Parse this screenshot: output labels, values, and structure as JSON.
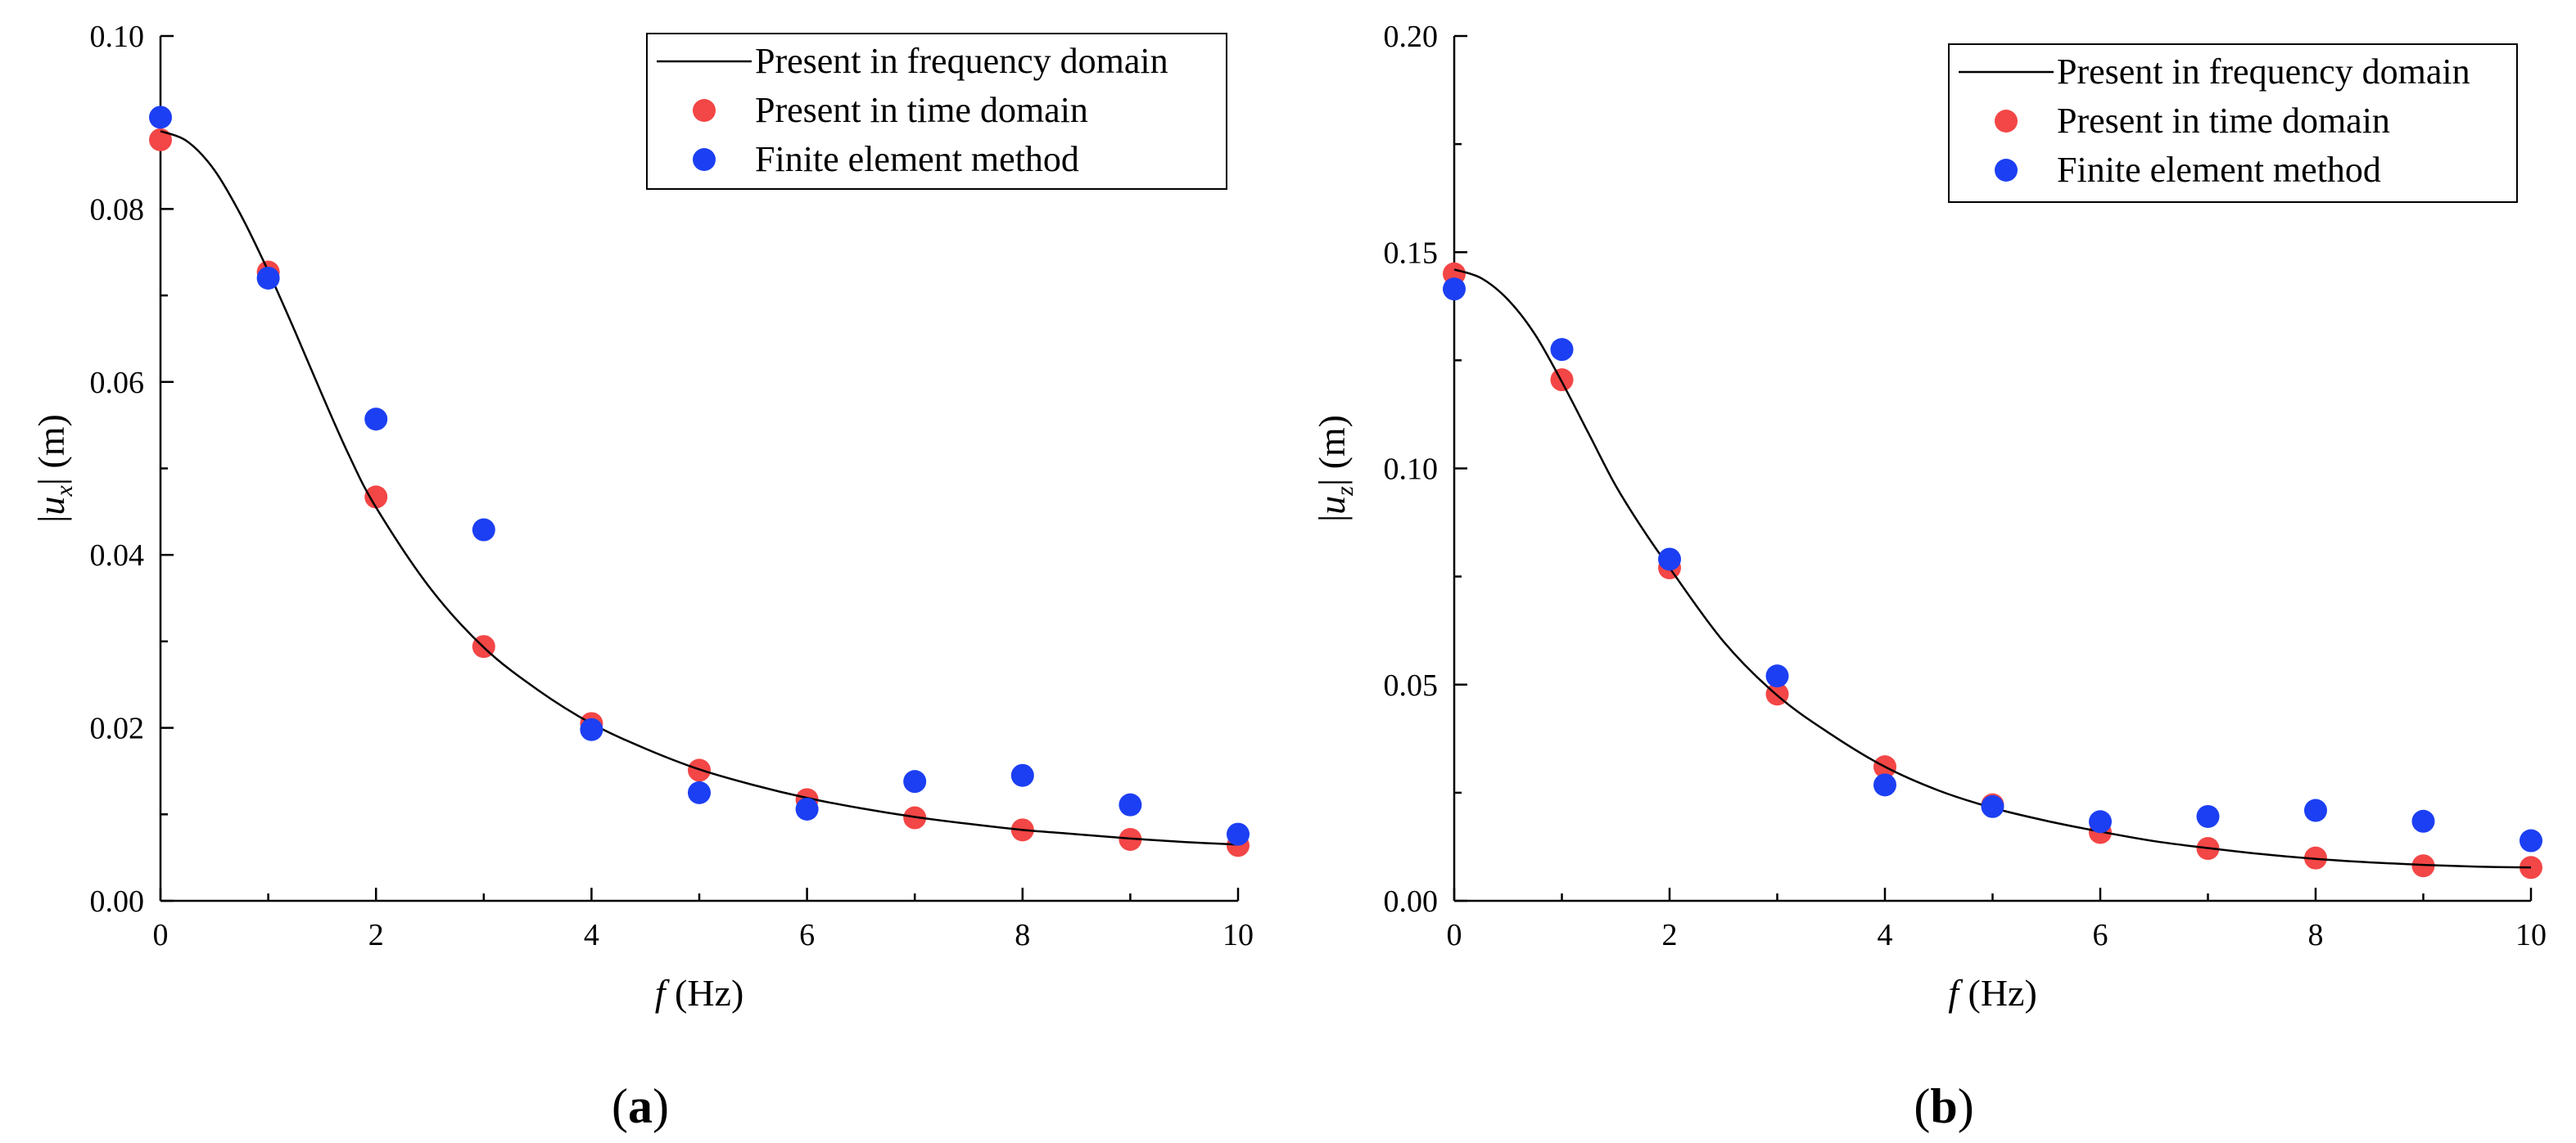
{
  "colors": {
    "time_domain": "#f34646",
    "fem": "#1c3ff3",
    "curve": "#000000"
  },
  "chart_data": [
    {
      "type": "line+scatter",
      "panel_label": "a",
      "xlabel_italic": "f",
      "xlabel_rest": "(Hz)",
      "ylabel_prefix": "|",
      "ylabel_var": "u",
      "ylabel_sub": "x",
      "ylabel_suffix": "| (m)",
      "xlim": [
        0,
        10
      ],
      "ylim": [
        0,
        0.1
      ],
      "x_ticks": [
        0,
        2,
        4,
        6,
        8,
        10
      ],
      "x_tick_labels": [
        "0",
        "2",
        "4",
        "6",
        "8",
        "10"
      ],
      "y_ticks": [
        0,
        0.02,
        0.04,
        0.06,
        0.08,
        0.1
      ],
      "y_tick_labels": [
        "0.00",
        "0.02",
        "0.04",
        "0.06",
        "0.08",
        "0.10"
      ],
      "legend_position": "top-right",
      "series": [
        {
          "name": "Present in frequency domain",
          "kind": "line",
          "x": [
            0,
            0.25,
            0.5,
            0.75,
            1,
            1.25,
            1.5,
            1.75,
            2,
            2.5,
            3,
            3.5,
            4,
            4.5,
            5,
            5.5,
            6,
            6.5,
            7,
            7.5,
            8,
            8.5,
            9,
            9.5,
            10
          ],
          "y": [
            0.089,
            0.0878,
            0.0845,
            0.0792,
            0.0728,
            0.0658,
            0.0585,
            0.0515,
            0.0455,
            0.0362,
            0.0293,
            0.0244,
            0.0205,
            0.0176,
            0.0152,
            0.0134,
            0.0119,
            0.0107,
            0.0097,
            0.0089,
            0.0082,
            0.0077,
            0.0072,
            0.0068,
            0.0065
          ]
        },
        {
          "name": "Present in time domain",
          "kind": "scatter",
          "x": [
            0,
            1,
            2,
            3,
            4,
            5,
            6,
            7,
            8,
            9,
            10
          ],
          "y": [
            0.088,
            0.0727,
            0.0467,
            0.0294,
            0.0205,
            0.0151,
            0.0117,
            0.0096,
            0.0082,
            0.0071,
            0.0064
          ]
        },
        {
          "name": "Finite element method",
          "kind": "scatter",
          "x": [
            0,
            1,
            2,
            3,
            4,
            5,
            6,
            7,
            8,
            9,
            10
          ],
          "y": [
            0.0906,
            0.072,
            0.0557,
            0.0429,
            0.0198,
            0.0125,
            0.0106,
            0.0138,
            0.0145,
            0.0111,
            0.0077
          ]
        }
      ]
    },
    {
      "type": "line+scatter",
      "panel_label": "b",
      "xlabel_italic": "f",
      "xlabel_rest": "(Hz)",
      "ylabel_prefix": "|",
      "ylabel_var": "u",
      "ylabel_sub": "z",
      "ylabel_suffix": "| (m)",
      "xlim": [
        0,
        10
      ],
      "ylim": [
        0,
        0.2
      ],
      "x_ticks": [
        0,
        2,
        4,
        6,
        8,
        10
      ],
      "x_tick_labels": [
        "0",
        "2",
        "4",
        "6",
        "8",
        "10"
      ],
      "y_ticks": [
        0,
        0.05,
        0.1,
        0.15,
        0.2
      ],
      "y_tick_labels": [
        "0.00",
        "0.05",
        "0.10",
        "0.15",
        "0.20"
      ],
      "legend_position": "top-right",
      "series": [
        {
          "name": "Present in frequency domain",
          "kind": "line",
          "x": [
            0,
            0.25,
            0.5,
            0.75,
            1,
            1.25,
            1.5,
            1.75,
            2,
            2.5,
            3,
            3.5,
            4,
            4.5,
            5,
            5.5,
            6,
            6.5,
            7,
            7.5,
            8,
            8.5,
            9,
            9.5,
            10
          ],
          "y": [
            0.146,
            0.144,
            0.139,
            0.131,
            0.12,
            0.108,
            0.096,
            0.086,
            0.077,
            0.06,
            0.0475,
            0.0385,
            0.031,
            0.0255,
            0.0215,
            0.0185,
            0.016,
            0.0138,
            0.0122,
            0.0108,
            0.0097,
            0.0089,
            0.0083,
            0.0079,
            0.0077
          ]
        },
        {
          "name": "Present in time domain",
          "kind": "scatter",
          "x": [
            0,
            1,
            2,
            3,
            4,
            5,
            6,
            7,
            8,
            9,
            10
          ],
          "y": [
            0.145,
            0.1205,
            0.077,
            0.0478,
            0.031,
            0.0222,
            0.0158,
            0.0121,
            0.0099,
            0.0081,
            0.0077
          ]
        },
        {
          "name": "Finite element method",
          "kind": "scatter",
          "x": [
            0,
            1,
            2,
            3,
            4,
            5,
            6,
            7,
            8,
            9,
            10
          ],
          "y": [
            0.1415,
            0.1275,
            0.079,
            0.052,
            0.0268,
            0.0218,
            0.0183,
            0.0195,
            0.0209,
            0.0184,
            0.0139
          ]
        }
      ]
    }
  ]
}
